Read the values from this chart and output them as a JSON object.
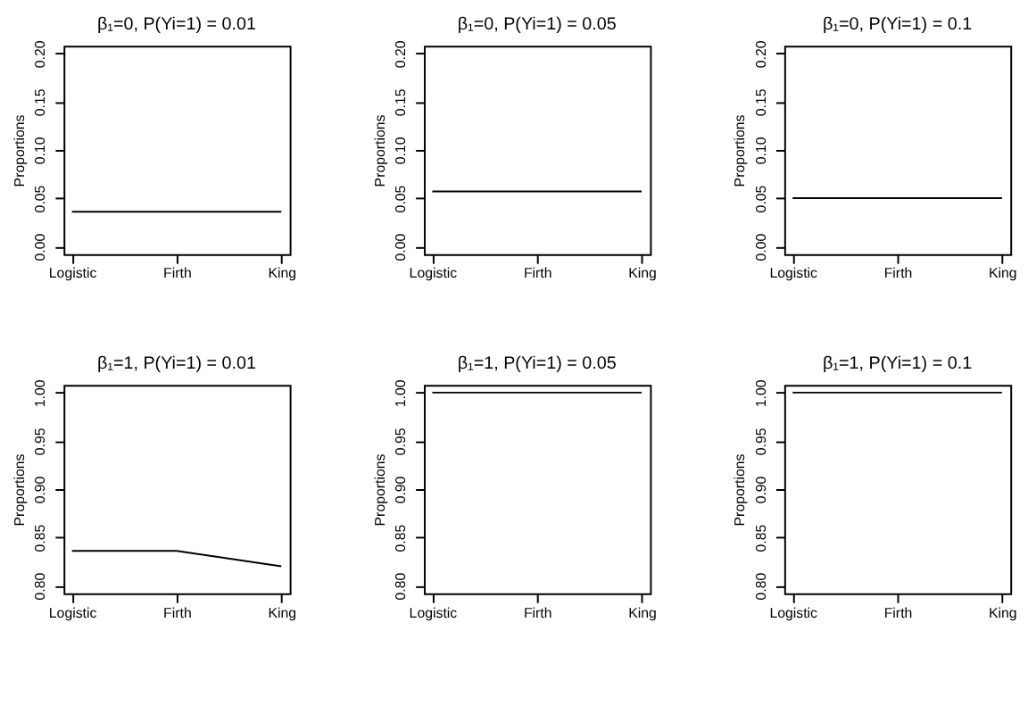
{
  "chart_data": [
    {
      "type": "line",
      "title": "β₁=0, P(Yi=1) = 0.01",
      "ylabel": "Proportions",
      "categories": [
        "Logistic",
        "Firth",
        "King"
      ],
      "series": [
        {
          "color": "#000000",
          "values": [
            0.036,
            0.036,
            0.036
          ]
        }
      ],
      "ylim": [
        -0.008,
        0.208
      ],
      "yticks": [
        {
          "value": 0,
          "label": "0.00"
        },
        0.05,
        {
          "value": 0.1,
          "label": "0.10"
        },
        0.15,
        {
          "value": 0.2,
          "label": "0.20"
        }
      ],
      "grid": false,
      "marker": "none",
      "line_style": "solid"
    },
    {
      "type": "line",
      "title": "β₁=0, P(Yi=1) = 0.05",
      "ylabel": "Proportions",
      "categories": [
        "Logistic",
        "Firth",
        "King"
      ],
      "series": [
        {
          "color": "#000000",
          "values": [
            0.057,
            0.057,
            0.057
          ]
        }
      ],
      "ylim": [
        -0.008,
        0.208
      ],
      "yticks": [
        {
          "value": 0,
          "label": "0.00"
        },
        0.05,
        {
          "value": 0.1,
          "label": "0.10"
        },
        0.15,
        {
          "value": 0.2,
          "label": "0.20"
        }
      ],
      "grid": false,
      "marker": "none",
      "line_style": "solid"
    },
    {
      "type": "line",
      "title": "β₁=0, P(Yi=1) = 0.1",
      "ylabel": "Proportions",
      "categories": [
        "Logistic",
        "Firth",
        "King"
      ],
      "series": [
        {
          "color": "#000000",
          "values": [
            0.05,
            0.05,
            0.05
          ]
        }
      ],
      "ylim": [
        -0.008,
        0.208
      ],
      "yticks": [
        {
          "value": 0,
          "label": "0.00"
        },
        0.05,
        {
          "value": 0.1,
          "label": "0.10"
        },
        0.15,
        {
          "value": 0.2,
          "label": "0.20"
        }
      ],
      "grid": false,
      "marker": "none",
      "line_style": "solid"
    },
    {
      "type": "line",
      "title": "β₁=1, P(Yi=1) = 0.01",
      "ylabel": "Proportions",
      "categories": [
        "Logistic",
        "Firth",
        "King"
      ],
      "series": [
        {
          "color": "#000000",
          "values": [
            0.836,
            0.836,
            0.82
          ]
        }
      ],
      "ylim": [
        0.792,
        1.008
      ],
      "yticks": [
        {
          "value": 0.8,
          "label": "0.80"
        },
        0.85,
        {
          "value": 0.9,
          "label": "0.90"
        },
        0.95,
        {
          "value": 1,
          "label": "1.00"
        }
      ],
      "grid": false,
      "marker": "none",
      "line_style": "solid"
    },
    {
      "type": "line",
      "title": "β₁=1, P(Yi=1) = 0.05",
      "ylabel": "Proportions",
      "categories": [
        "Logistic",
        "Firth",
        "King"
      ],
      "series": [
        {
          "color": "#000000",
          "values": [
            1,
            1,
            1
          ]
        }
      ],
      "ylim": [
        0.792,
        1.008
      ],
      "yticks": [
        {
          "value": 0.8,
          "label": "0.80"
        },
        0.85,
        {
          "value": 0.9,
          "label": "0.90"
        },
        0.95,
        {
          "value": 1,
          "label": "1.00"
        }
      ],
      "grid": false,
      "marker": "none",
      "line_style": "solid"
    },
    {
      "type": "line",
      "title": "β₁=1, P(Yi=1) = 0.1",
      "ylabel": "Proportions",
      "categories": [
        "Logistic",
        "Firth",
        "King"
      ],
      "series": [
        {
          "color": "#000000",
          "values": [
            1,
            1,
            1
          ]
        }
      ],
      "ylim": [
        0.792,
        1.008
      ],
      "yticks": [
        {
          "value": 0.8,
          "label": "0.80"
        },
        0.85,
        {
          "value": 0.9,
          "label": "0.90"
        },
        0.95,
        {
          "value": 1,
          "label": "1.00"
        }
      ],
      "grid": false,
      "marker": "none",
      "line_style": "solid"
    }
  ]
}
